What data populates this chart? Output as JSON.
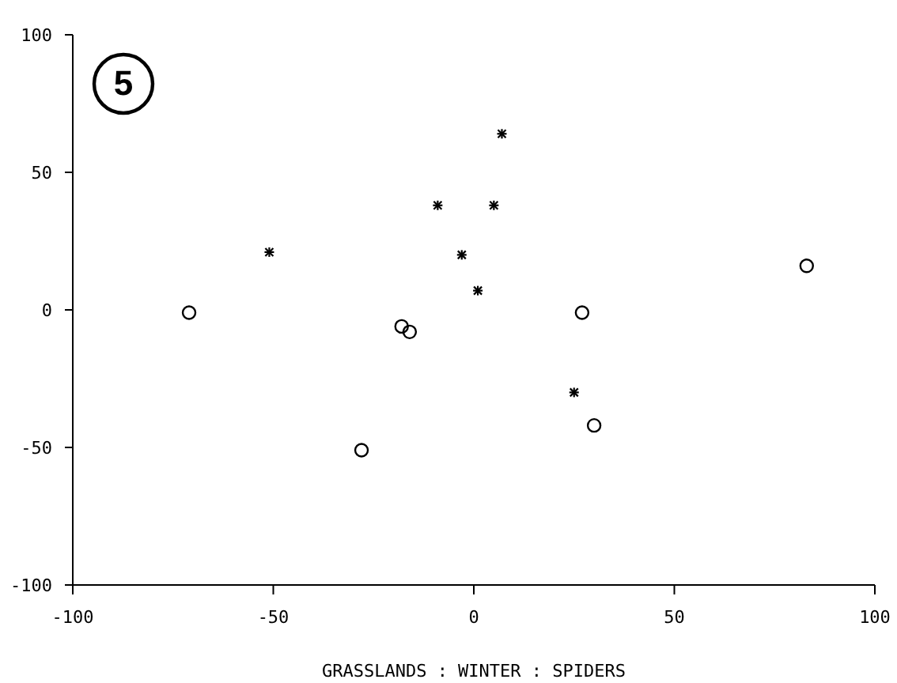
{
  "chart_data": {
    "type": "scatter",
    "xlabel": "GRASSLANDS : WINTER : SPIDERS",
    "annotations": [
      "5"
    ],
    "xlim": [
      -100,
      100
    ],
    "xticks": [
      -100,
      -50,
      0,
      50,
      100
    ],
    "ylim": [
      -100,
      100
    ],
    "yticks": [
      -100,
      -50,
      0,
      50,
      100
    ],
    "grid": false,
    "legend": false,
    "series": [
      {
        "color": "#000000",
        "marker": "cross",
        "x": [
          -51,
          -9,
          5,
          7,
          -3,
          1,
          25
        ],
        "values": [
          21,
          38,
          38,
          64,
          20,
          7,
          -30
        ]
      },
      {
        "color": "#000000",
        "marker": "circle",
        "x": [
          -71,
          -18,
          -16,
          27,
          83,
          30,
          -28
        ],
        "values": [
          -1,
          -6,
          -8,
          -1,
          16,
          -42,
          -51
        ]
      }
    ]
  }
}
